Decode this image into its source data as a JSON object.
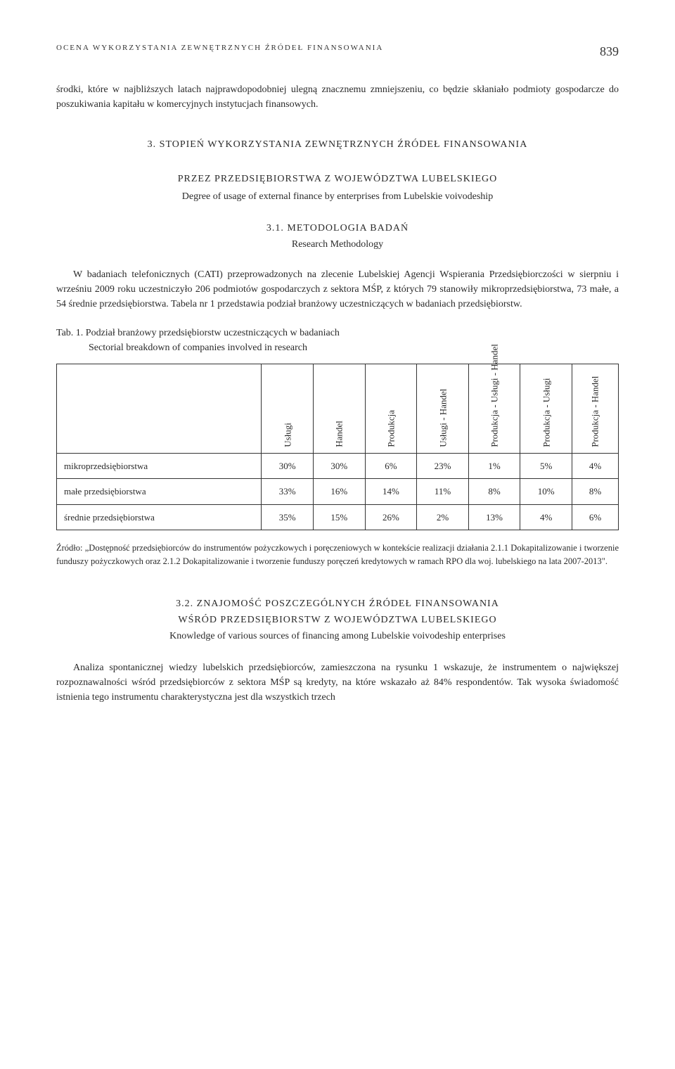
{
  "header": {
    "running": "OCENA WYKORZYSTANIA ZEWNĘTRZNYCH ŹRÓDEŁ FINANSOWANIA",
    "page": "839"
  },
  "intro": "środki, które w najbliższych latach najprawdopodobniej ulegną znacznemu zmniejszeniu, co będzie skłaniało podmioty gospodarcze do poszukiwania kapitału w komercyjnych instytucjach finansowych.",
  "section3": {
    "title_line1": "3. STOPIEŃ WYKORZYSTANIA ZEWNĘTRZNYCH ŹRÓDEŁ FINANSOWANIA",
    "title_line2": "PRZEZ PRZEDSIĘBIORSTWA Z WOJEWÓDZTWA LUBELSKIEGO",
    "subtitle": "Degree of usage of external finance by enterprises from Lubelskie voivodeship"
  },
  "section31": {
    "title": "3.1. METODOLOGIA BADAŃ",
    "subtitle": "Research Methodology",
    "para": "W badaniach telefonicznych (CATI) przeprowadzonych na zlecenie Lubelskiej Agencji Wspierania Przedsiębiorczości w sierpniu i wrześniu 2009 roku uczestniczyło 206 podmiotów gospodarczych z sektora MŚP, z których 79 stanowiły mikroprzedsiębiorstwa, 73 małe, a 54 średnie przedsiębiorstwa. Tabela nr 1 przedstawia podział branżowy uczestniczących w badaniach przedsiębiorstw."
  },
  "table1": {
    "caption_pl": "Tab. 1. Podział branżowy przedsiębiorstw uczestniczących w badaniach",
    "caption_en": "Sectorial breakdown of companies involved in research",
    "columns": [
      "Usługi",
      "Handel",
      "Produkcja",
      "Usługi - Handel",
      "Produkcja - Usługi - Handel",
      "Produkcja - Usługi",
      "Produkcja - Handel"
    ],
    "rows": [
      {
        "label": "mikroprzedsiębiorstwa",
        "cells": [
          "30%",
          "30%",
          "6%",
          "23%",
          "1%",
          "5%",
          "4%"
        ]
      },
      {
        "label": "małe przedsiębiorstwa",
        "cells": [
          "33%",
          "16%",
          "14%",
          "11%",
          "8%",
          "10%",
          "8%"
        ]
      },
      {
        "label": "średnie przedsiębiorstwa",
        "cells": [
          "35%",
          "15%",
          "26%",
          "2%",
          "13%",
          "4%",
          "6%"
        ]
      }
    ],
    "source": "Źródło: „Dostępność przedsiębiorców do instrumentów pożyczkowych i poręczeniowych w kontekście realizacji działania 2.1.1 Dokapitalizowanie i tworzenie funduszy pożyczkowych oraz 2.1.2 Dokapitalizowanie i tworzenie funduszy poręczeń kredytowych w ramach RPO dla woj. lubelskiego na lata 2007-2013\"."
  },
  "section32": {
    "title_line1": "3.2. ZNAJOMOŚĆ POSZCZEGÓLNYCH ŹRÓDEŁ FINANSOWANIA",
    "title_line2": "WŚRÓD PRZEDSIĘBIORSTW Z WOJEWÓDZTWA LUBELSKIEGO",
    "subtitle": "Knowledge of various sources of financing among Lubelskie voivodeship enterprises",
    "para": "Analiza spontanicznej wiedzy lubelskich przedsiębiorców, zamieszczona na rysunku 1 wskazuje, że instrumentem o największej rozpoznawalności wśród przedsiębiorców z sektora MŚP są kredyty, na które wskazało aż 84% respondentów. Tak wysoka świadomość istnienia tego instrumentu charakterystyczna jest dla wszystkich trzech"
  }
}
